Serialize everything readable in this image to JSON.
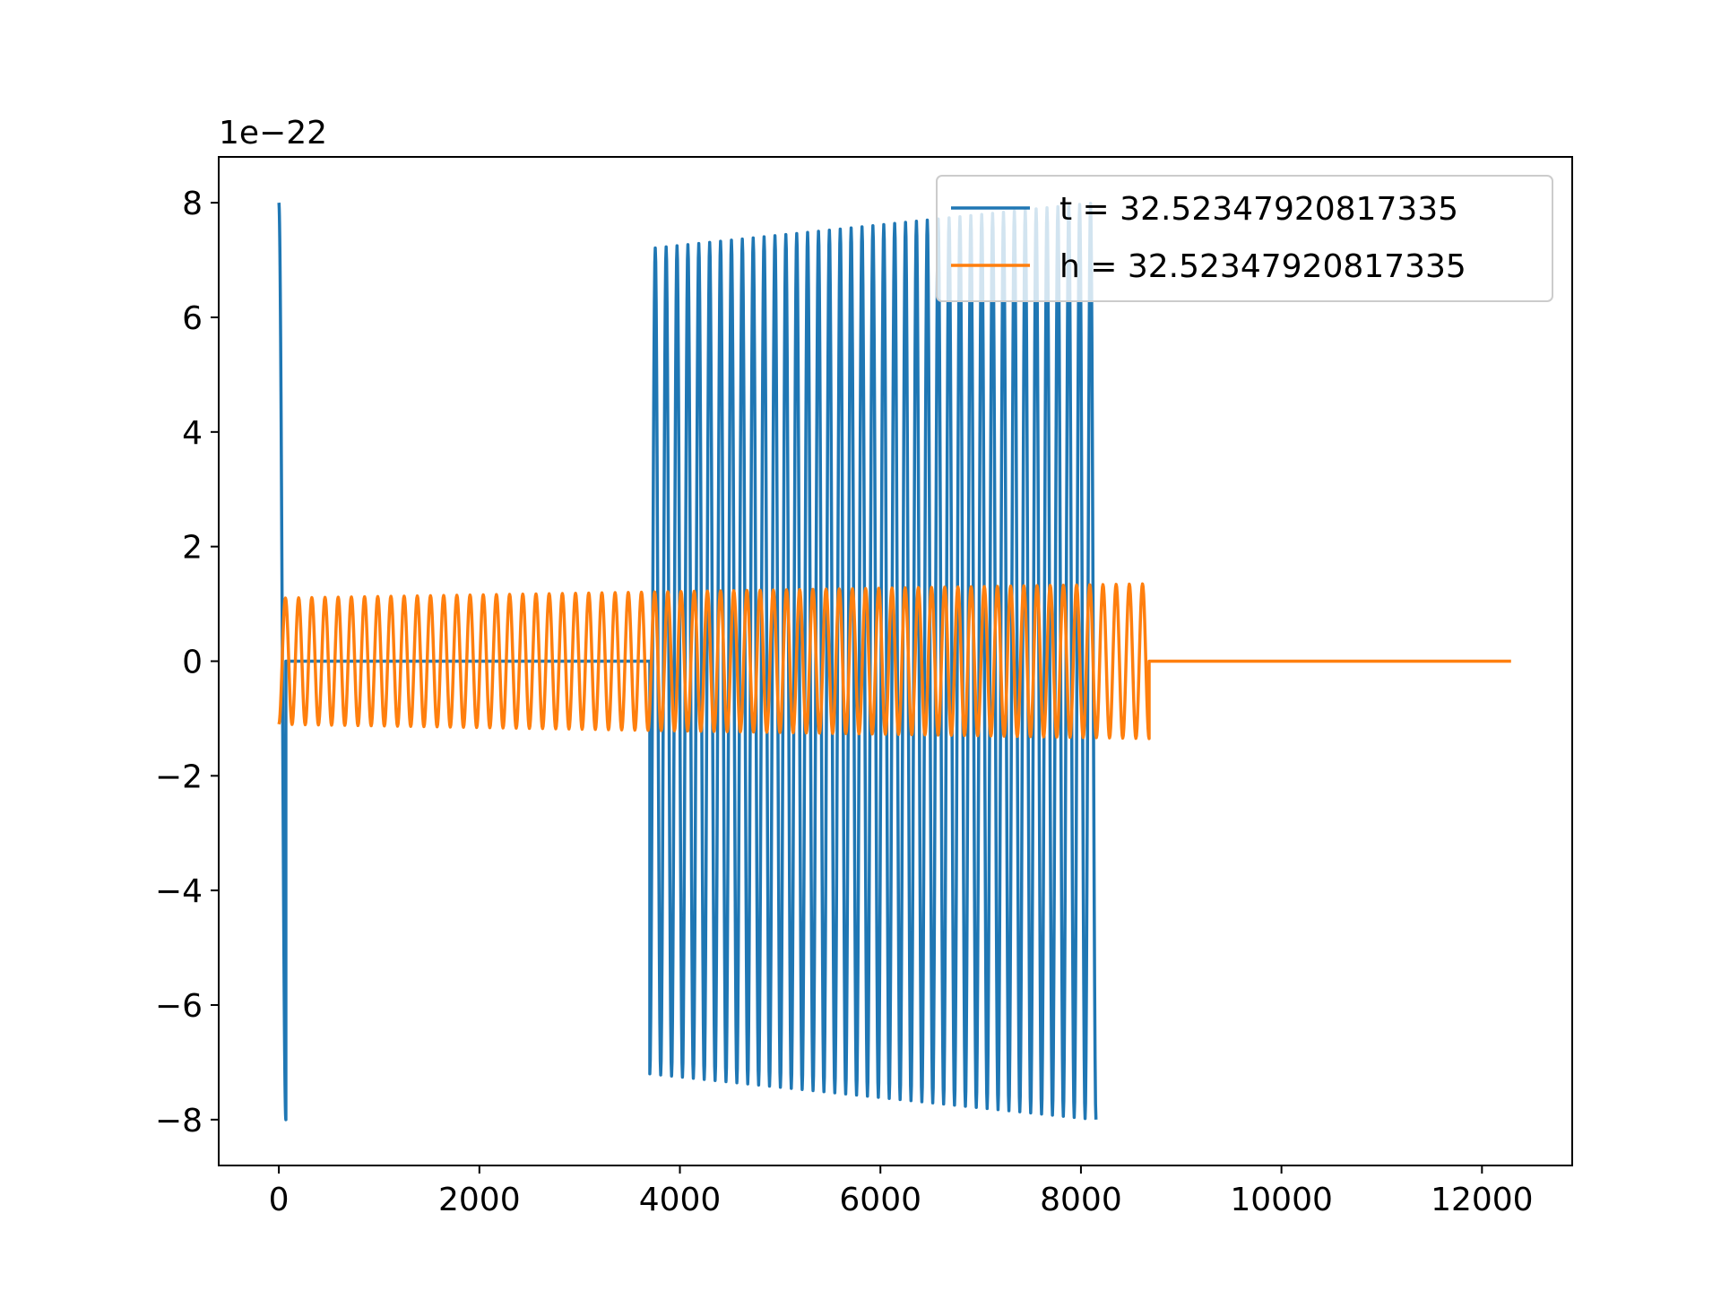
{
  "chart_data": {
    "type": "line",
    "title": "",
    "xlabel": "",
    "ylabel": "",
    "y_offset_label": "1e−22",
    "xlim": [
      -600,
      12900
    ],
    "ylim": [
      -8.8,
      8.8
    ],
    "x_ticks": [
      0,
      2000,
      4000,
      6000,
      8000,
      10000,
      12000
    ],
    "x_tick_labels": [
      "0",
      "2000",
      "4000",
      "6000",
      "8000",
      "10000",
      "12000"
    ],
    "y_ticks": [
      8,
      6,
      4,
      2,
      0,
      -2,
      -4,
      -6,
      -8
    ],
    "y_tick_labels": [
      "8",
      "6",
      "4",
      "2",
      "0",
      "−2",
      "−4",
      "−6",
      "−8"
    ],
    "grid": false,
    "legend_position": "upper right",
    "series": [
      {
        "name": "t = 32.52347920817335",
        "color": "#1f77b4",
        "segments": [
          {
            "x_start": 0,
            "x_end": 70,
            "y_start": 8.0,
            "y_end": -8.0,
            "form": "single-swing"
          },
          {
            "x_start": 70,
            "x_end": 3700,
            "value": 0.0,
            "form": "flat"
          },
          {
            "x_start": 3700,
            "x_end": 8150,
            "cycles": 41,
            "amplitude_start": 7.2,
            "amplitude_end": 8.0,
            "form": "oscillation"
          }
        ]
      },
      {
        "name": "h = 32.52347920817335",
        "color": "#ff7f0e",
        "segments": [
          {
            "x_start": 0,
            "x_end": 8680,
            "cycles": 66,
            "amplitude_start": 1.1,
            "amplitude_end": 1.35,
            "form": "oscillation"
          },
          {
            "x_start": 8680,
            "x_end": 12290,
            "value": 0.0,
            "form": "flat"
          }
        ]
      }
    ]
  }
}
